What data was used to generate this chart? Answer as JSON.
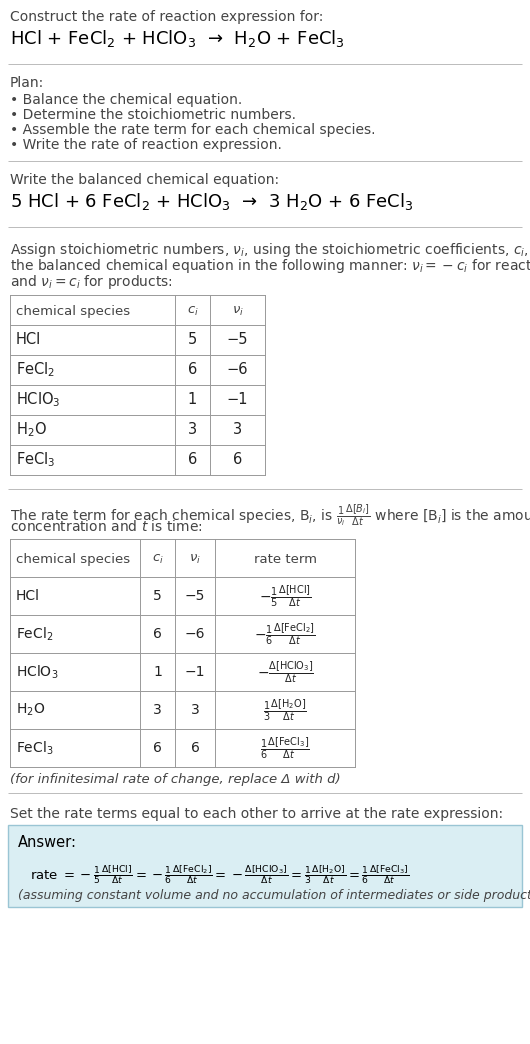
{
  "title_line1": "Construct the rate of reaction expression for:",
  "title_line2": "HCl + FeCl$_2$ + HClO$_3$  →  H$_2$O + FeCl$_3$",
  "plan_header": "Plan:",
  "plan_items": [
    "• Balance the chemical equation.",
    "• Determine the stoichiometric numbers.",
    "• Assemble the rate term for each chemical species.",
    "• Write the rate of reaction expression."
  ],
  "balanced_header": "Write the balanced chemical equation:",
  "balanced_eq": "5 HCl + 6 FeCl$_2$ + HClO$_3$  →  3 H$_2$O + 6 FeCl$_3$",
  "stoich_intro_lines": [
    "Assign stoichiometric numbers, $\\nu_i$, using the stoichiometric coefficients, $c_i$, from",
    "the balanced chemical equation in the following manner: $\\nu_i = -c_i$ for reactants",
    "and $\\nu_i = c_i$ for products:"
  ],
  "table1_col_header": [
    "chemical species",
    "$c_i$",
    "$\\nu_i$"
  ],
  "table1_rows": [
    [
      "HCl",
      "5",
      "−5"
    ],
    [
      "FeCl$_2$",
      "6",
      "−6"
    ],
    [
      "HClO$_3$",
      "1",
      "−1"
    ],
    [
      "H$_2$O",
      "3",
      "3"
    ],
    [
      "FeCl$_3$",
      "6",
      "6"
    ]
  ],
  "rate_intro_lines": [
    "The rate term for each chemical species, B$_i$, is $\\frac{1}{\\nu_i}\\frac{\\Delta[B_i]}{\\Delta t}$ where [B$_i$] is the amount",
    "concentration and $t$ is time:"
  ],
  "table2_col_header": [
    "chemical species",
    "$c_i$",
    "$\\nu_i$",
    "rate term"
  ],
  "table2_rows": [
    [
      "HCl",
      "5",
      "−5",
      "$-\\frac{1}{5}\\frac{\\Delta[\\mathrm{HCl}]}{\\Delta t}$"
    ],
    [
      "FeCl$_2$",
      "6",
      "−6",
      "$-\\frac{1}{6}\\frac{\\Delta[\\mathrm{FeCl}_2]}{\\Delta t}$"
    ],
    [
      "HClO$_3$",
      "1",
      "−1",
      "$-\\frac{\\Delta[\\mathrm{HClO}_3]}{\\Delta t}$"
    ],
    [
      "H$_2$O",
      "3",
      "3",
      "$\\frac{1}{3}\\frac{\\Delta[\\mathrm{H}_2\\mathrm{O}]}{\\Delta t}$"
    ],
    [
      "FeCl$_3$",
      "6",
      "6",
      "$\\frac{1}{6}\\frac{\\Delta[\\mathrm{FeCl}_3]}{\\Delta t}$"
    ]
  ],
  "infinitesimal_note": "(for infinitesimal rate of change, replace Δ with d)",
  "set_equal_text": "Set the rate terms equal to each other to arrive at the rate expression:",
  "answer_label": "Answer:",
  "answer_box_color": "#daeef3",
  "answer_box_border": "#9ac5d4",
  "answer_eq": "rate $= -\\frac{1}{5}\\frac{\\Delta[\\mathrm{HCl}]}{\\Delta t} = -\\frac{1}{6}\\frac{\\Delta[\\mathrm{FeCl}_2]}{\\Delta t} = -\\frac{\\Delta[\\mathrm{HClO}_3]}{\\Delta t} = \\frac{1}{3}\\frac{\\Delta[\\mathrm{H}_2\\mathrm{O}]}{\\Delta t} = \\frac{1}{6}\\frac{\\Delta[\\mathrm{FeCl}_3]}{\\Delta t}$",
  "answer_note": "(assuming constant volume and no accumulation of intermediates or side products)",
  "bg_color": "#ffffff",
  "dark_text": "#222222",
  "gray_text": "#444444",
  "line_color": "#bbbbbb",
  "table_line_color": "#999999"
}
